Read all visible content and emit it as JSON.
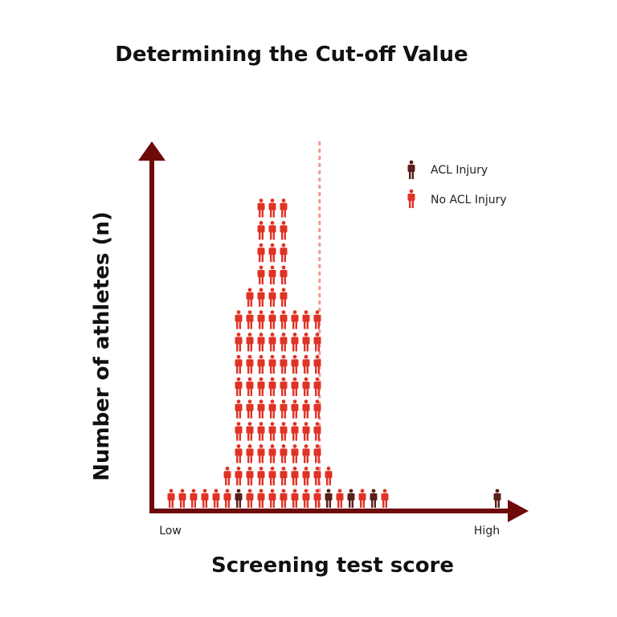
{
  "chart_data": {
    "type": "pictograph",
    "title": "Determining the Cut-off Value",
    "xlabel": "Screening test score",
    "ylabel": "Number of athletes (n)",
    "x_ticks": [
      "Low",
      "High"
    ],
    "legend": {
      "placement": "top-right",
      "items": [
        {
          "key": "injury",
          "label": "ACL Injury"
        },
        {
          "key": "no_injury",
          "label": "No ACL Injury"
        }
      ]
    },
    "cutoff_column": 14.2,
    "columns": [
      {
        "col": 1,
        "no_injury": 1,
        "injury": 0
      },
      {
        "col": 2,
        "no_injury": 1,
        "injury": 0
      },
      {
        "col": 3,
        "no_injury": 1,
        "injury": 0
      },
      {
        "col": 4,
        "no_injury": 1,
        "injury": 0
      },
      {
        "col": 5,
        "no_injury": 1,
        "injury": 0
      },
      {
        "col": 6,
        "no_injury": 2,
        "injury": 0
      },
      {
        "col": 7,
        "no_injury": 8,
        "injury": 1
      },
      {
        "col": 8,
        "no_injury": 10,
        "injury": 0
      },
      {
        "col": 9,
        "no_injury": 14,
        "injury": 0
      },
      {
        "col": 10,
        "no_injury": 14,
        "injury": 0
      },
      {
        "col": 11,
        "no_injury": 14,
        "injury": 0
      },
      {
        "col": 12,
        "no_injury": 9,
        "injury": 0
      },
      {
        "col": 13,
        "no_injury": 9,
        "injury": 0
      },
      {
        "col": 14,
        "no_injury": 9,
        "injury": 0
      },
      {
        "col": 15,
        "no_injury": 1,
        "injury": 1
      },
      {
        "col": 16,
        "no_injury": 1,
        "injury": 0
      },
      {
        "col": 17,
        "no_injury": 0,
        "injury": 1
      },
      {
        "col": 18,
        "no_injury": 1,
        "injury": 0
      },
      {
        "col": 19,
        "no_injury": 0,
        "injury": 1
      },
      {
        "col": 20,
        "no_injury": 1,
        "injury": 0
      },
      {
        "col": 30,
        "no_injury": 0,
        "injury": 1
      }
    ]
  },
  "colors": {
    "axis": "#6e0a0a",
    "no_injury": "#e03326",
    "injury": "#5a1f1a",
    "cutoff": "#f09a90"
  },
  "icons": {
    "person": "person-icon"
  }
}
